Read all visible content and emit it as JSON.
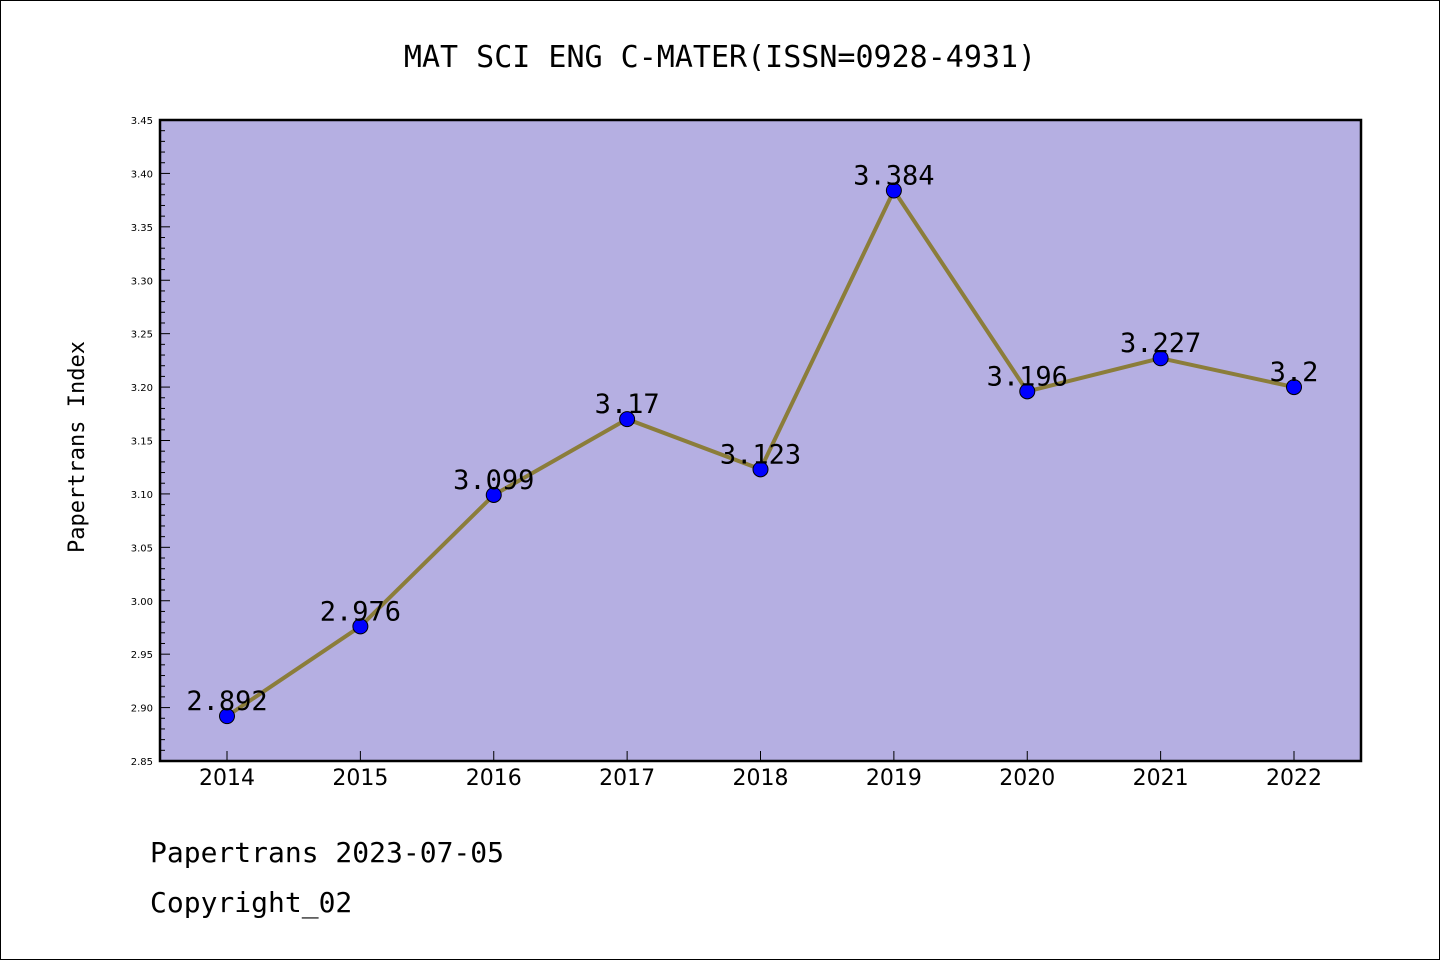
{
  "chart_data": {
    "type": "line",
    "title": "MAT SCI ENG C-MATER(ISSN=0928-4931)",
    "xlabel": "",
    "ylabel": "Papertrans Index",
    "categories": [
      "2014",
      "2015",
      "2016",
      "2017",
      "2018",
      "2019",
      "2020",
      "2021",
      "2022"
    ],
    "series": [
      {
        "values": [
          2.892,
          2.976,
          3.099,
          3.17,
          3.123,
          3.384,
          3.196,
          3.227,
          3.2
        ],
        "labels": [
          "2.892",
          "2.976",
          "3.099",
          "3.17",
          "3.123",
          "3.384",
          "3.196",
          "3.227",
          "3.2"
        ]
      }
    ],
    "ylim": [
      2.85,
      3.45
    ],
    "yticks": [
      "2.85",
      "2.90",
      "2.95",
      "3.00",
      "3.05",
      "3.10",
      "3.15",
      "3.20",
      "3.25",
      "3.30",
      "3.35",
      "3.40",
      "3.45"
    ],
    "grid": false,
    "legend": "none",
    "colors": {
      "plot_background": "#b5afe2",
      "line": "#8b7d3a",
      "marker": "#0000ff"
    }
  },
  "footer": {
    "date_text": "Papertrans 2023-07-05",
    "copyright_text": "Copyright_02"
  }
}
